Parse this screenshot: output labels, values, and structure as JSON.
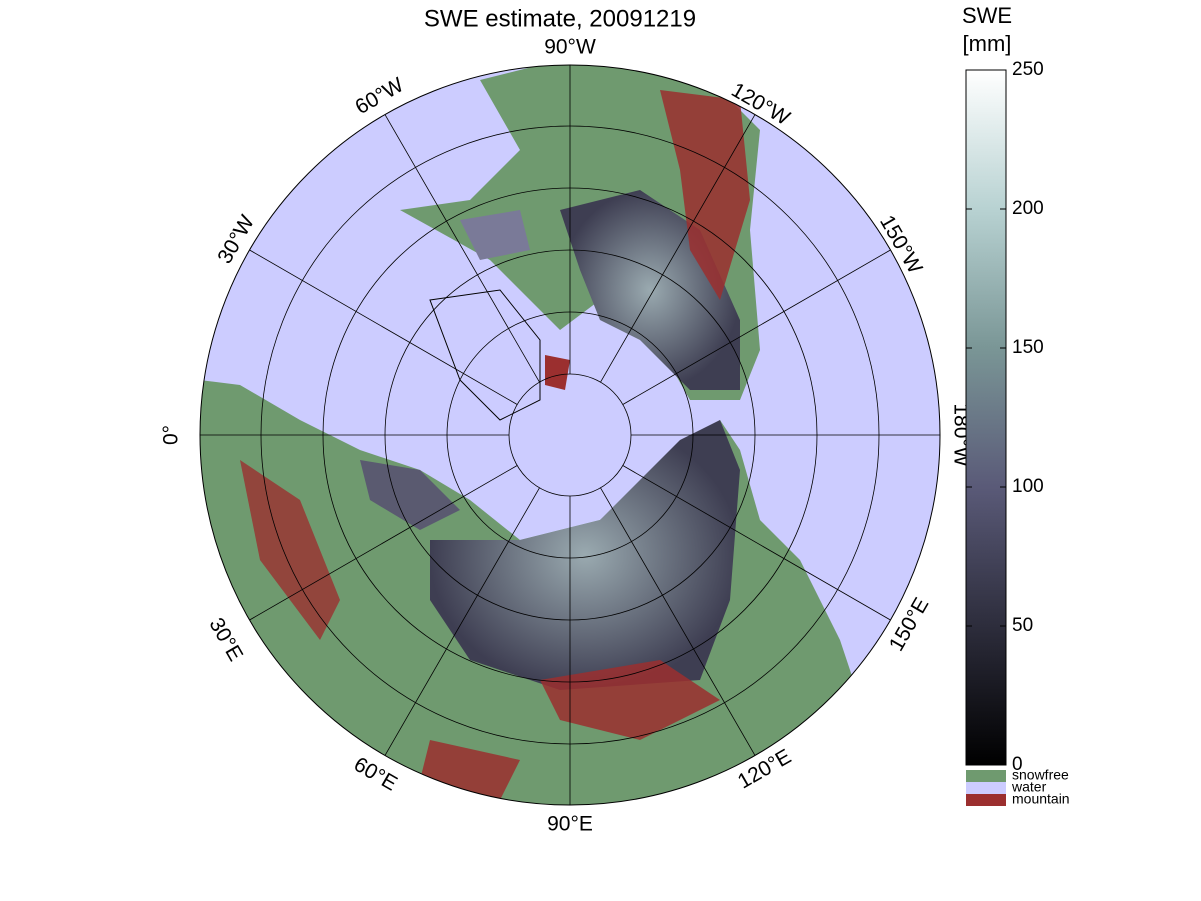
{
  "title": "SWE estimate, 20091219",
  "meridian_labels": [
    "90°W",
    "120°W",
    "150°W",
    "180°W",
    "150°E",
    "120°E",
    "90°E",
    "60°E",
    "30°E",
    "0°",
    "30°W",
    "60°W"
  ],
  "colorbar": {
    "label": [
      "SWE",
      "[mm]"
    ],
    "ylim": [
      0,
      250
    ],
    "ticks": [
      0,
      50,
      100,
      150,
      200,
      250
    ]
  },
  "legend": [
    {
      "name": "snowfree",
      "color": "#6f9a6f"
    },
    {
      "name": "water",
      "color": "#ccccff"
    },
    {
      "name": "mountain",
      "color": "#9b2f2f"
    }
  ]
}
